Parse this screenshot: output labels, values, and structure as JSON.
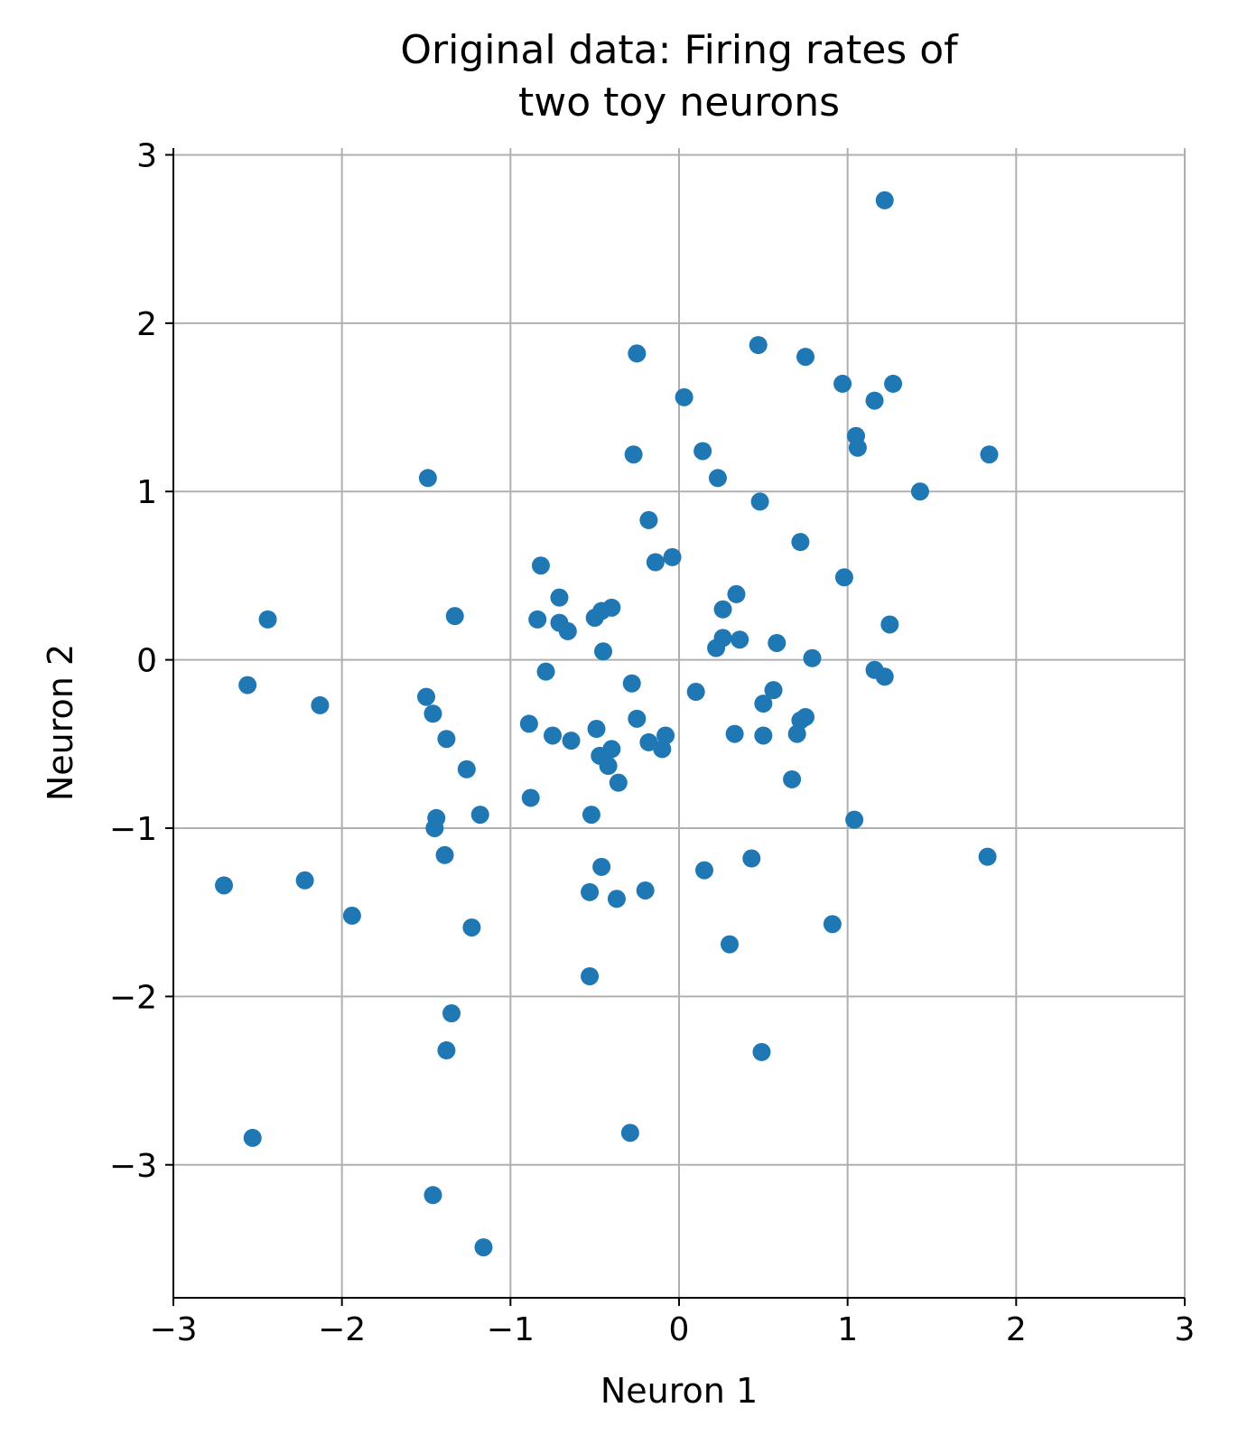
{
  "chart_data": {
    "type": "scatter",
    "title": [
      "Original data: Firing rates of",
      "two toy neurons"
    ],
    "x_label": "Neuron 1",
    "y_label": "Neuron 2",
    "color": "#1f77b4",
    "grid": true,
    "xlim": [
      -3,
      3
    ],
    "ylim": [
      -3.79,
      3.04
    ],
    "xticks": [
      {
        "value": -3,
        "label": "−3"
      },
      {
        "value": -2,
        "label": "−2"
      },
      {
        "value": -1,
        "label": "−1"
      },
      0,
      1,
      2,
      3
    ],
    "yticks": [
      {
        "value": -3,
        "label": "−3"
      },
      {
        "value": -2,
        "label": "−2"
      },
      {
        "value": -1,
        "label": "−1"
      },
      0,
      1,
      2,
      3
    ],
    "x": [
      1.22,
      -0.25,
      0.47,
      0.75,
      0.97,
      1.27,
      0.03,
      1.16,
      1.05,
      1.06,
      -0.27,
      0.14,
      1.84,
      -1.49,
      0.23,
      1.43,
      0.48,
      -0.18,
      0.72,
      -0.82,
      -0.14,
      -0.04,
      0.98,
      0.34,
      -0.71,
      -2.44,
      -1.33,
      -0.84,
      -0.71,
      -0.66,
      -0.46,
      -0.4,
      -0.5,
      0.26,
      0.26,
      0.36,
      0.22,
      0.58,
      1.25,
      -0.45,
      0.79,
      -2.56,
      -0.79,
      -0.28,
      0.1,
      0.56,
      1.16,
      1.22,
      -2.13,
      -1.5,
      -1.46,
      -0.25,
      0.5,
      0.72,
      0.75,
      -0.89,
      -0.49,
      -1.38,
      -0.75,
      -0.64,
      -0.08,
      -0.18,
      -0.1,
      -0.4,
      -0.47,
      -0.42,
      0.33,
      0.5,
      0.7,
      -1.26,
      -0.36,
      0.67,
      -0.88,
      -1.18,
      -0.52,
      -1.44,
      -1.45,
      1.04,
      -1.39,
      0.43,
      1.83,
      -0.46,
      0.15,
      -2.7,
      -2.22,
      -0.53,
      -0.2,
      -0.37,
      -1.94,
      0.91,
      -1.23,
      0.3,
      -0.53,
      -1.35,
      -1.38,
      0.49,
      -0.29,
      -2.53,
      -1.46,
      -1.16
    ],
    "y": [
      2.73,
      1.82,
      1.87,
      1.8,
      1.64,
      1.64,
      1.56,
      1.54,
      1.33,
      1.26,
      1.22,
      1.24,
      1.22,
      1.08,
      1.08,
      1.0,
      0.94,
      0.83,
      0.7,
      0.56,
      0.58,
      0.61,
      0.49,
      0.39,
      0.37,
      0.24,
      0.26,
      0.24,
      0.22,
      0.17,
      0.29,
      0.31,
      0.25,
      0.3,
      0.13,
      0.12,
      0.07,
      0.1,
      0.21,
      0.05,
      0.01,
      -0.15,
      -0.07,
      -0.14,
      -0.19,
      -0.18,
      -0.06,
      -0.1,
      -0.27,
      -0.22,
      -0.32,
      -0.35,
      -0.26,
      -0.36,
      -0.34,
      -0.38,
      -0.41,
      -0.47,
      -0.45,
      -0.48,
      -0.45,
      -0.49,
      -0.53,
      -0.53,
      -0.57,
      -0.63,
      -0.44,
      -0.45,
      -0.44,
      -0.65,
      -0.73,
      -0.71,
      -0.82,
      -0.92,
      -0.92,
      -0.94,
      -1.0,
      -0.95,
      -1.16,
      -1.18,
      -1.17,
      -1.23,
      -1.25,
      -1.34,
      -1.31,
      -1.38,
      -1.37,
      -1.42,
      -1.52,
      -1.57,
      -1.59,
      -1.69,
      -1.88,
      -2.1,
      -2.32,
      -2.33,
      -2.81,
      -2.84,
      -3.18,
      -3.49
    ]
  }
}
